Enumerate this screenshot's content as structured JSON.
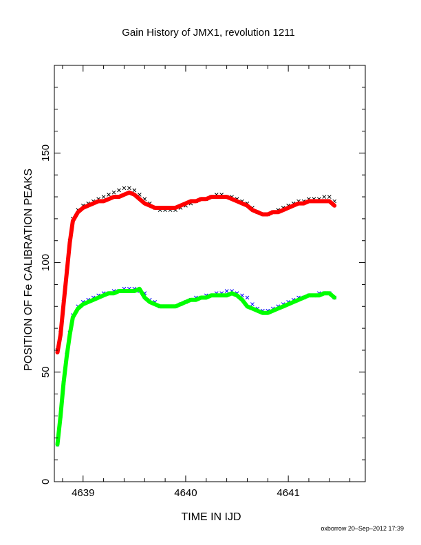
{
  "chart_data": {
    "type": "scatter",
    "title": "Gain History of JMX1, revolution 1211",
    "xlabel": "TIME IN IJD",
    "ylabel": "POSITION OF Fe CALIBRATION PEAKS",
    "xlim": [
      4638.72,
      4641.75
    ],
    "ylim": [
      0,
      190
    ],
    "xticks": [
      4639,
      4640,
      4641
    ],
    "xtick_labels": [
      "4639",
      "4640",
      "4641"
    ],
    "yticks": [
      0,
      50,
      100,
      150
    ],
    "ytick_labels": [
      "0",
      "50",
      "100",
      "150"
    ],
    "grid": false,
    "footer": "oxborrow 20–Sep–2012 17:39",
    "colors": {
      "upper_points": "#000000",
      "upper_fit": "#ff0000",
      "lower_points": "#0000ff",
      "lower_fit": "#00ff00"
    },
    "series": [
      {
        "marker": "x",
        "color": "#000000",
        "x": [
          4638.75,
          4638.78,
          4638.81,
          4638.84,
          4638.87,
          4638.9,
          4638.95,
          4639.0,
          4639.05,
          4639.1,
          4639.15,
          4639.2,
          4639.25,
          4639.3,
          4639.35,
          4639.4,
          4639.45,
          4639.5,
          4639.55,
          4639.6,
          4639.65,
          4639.7,
          4639.75,
          4639.8,
          4639.85,
          4639.9,
          4639.95,
          4640.0,
          4640.05,
          4640.1,
          4640.15,
          4640.2,
          4640.25,
          4640.3,
          4640.35,
          4640.4,
          4640.45,
          4640.5,
          4640.55,
          4640.6,
          4640.65,
          4640.7,
          4640.75,
          4640.8,
          4640.85,
          4640.9,
          4640.95,
          4641.0,
          4641.05,
          4641.1,
          4641.15,
          4641.2,
          4641.25,
          4641.3,
          4641.35,
          4641.4,
          4641.45
        ],
        "y": [
          60,
          68,
          82,
          96,
          110,
          120,
          124,
          126,
          127,
          128,
          129,
          130,
          131,
          132,
          133,
          134,
          134,
          133,
          131,
          129,
          127,
          125,
          124,
          124,
          124,
          124,
          125,
          126,
          127,
          128,
          129,
          129,
          130,
          131,
          131,
          130,
          130,
          129,
          128,
          127,
          125,
          123,
          122,
          122,
          123,
          124,
          125,
          126,
          127,
          128,
          128,
          129,
          129,
          129,
          130,
          130,
          128
        ]
      },
      {
        "marker": "line",
        "color": "#ff0000",
        "x": [
          4638.75,
          4638.78,
          4638.81,
          4638.84,
          4638.87,
          4638.9,
          4638.95,
          4639.0,
          4639.05,
          4639.1,
          4639.15,
          4639.2,
          4639.25,
          4639.3,
          4639.35,
          4639.4,
          4639.45,
          4639.5,
          4639.55,
          4639.6,
          4639.65,
          4639.7,
          4639.75,
          4639.8,
          4639.85,
          4639.9,
          4639.95,
          4640.0,
          4640.05,
          4640.1,
          4640.15,
          4640.2,
          4640.25,
          4640.3,
          4640.35,
          4640.4,
          4640.45,
          4640.5,
          4640.55,
          4640.6,
          4640.65,
          4640.7,
          4640.75,
          4640.8,
          4640.85,
          4640.9,
          4640.95,
          4641.0,
          4641.05,
          4641.1,
          4641.15,
          4641.2,
          4641.25,
          4641.3,
          4641.35,
          4641.4,
          4641.45
        ],
        "y": [
          59,
          67,
          81,
          95,
          109,
          119,
          123,
          125,
          126,
          127,
          128,
          128,
          129,
          130,
          130,
          131,
          132,
          131,
          129,
          127,
          126,
          125,
          125,
          125,
          125,
          125,
          126,
          127,
          128,
          128,
          129,
          129,
          130,
          130,
          130,
          130,
          129,
          128,
          127,
          126,
          124,
          123,
          122,
          122,
          123,
          123,
          124,
          125,
          126,
          127,
          127,
          128,
          128,
          128,
          128,
          128,
          126
        ]
      },
      {
        "marker": "x",
        "color": "#0000ff",
        "x": [
          4638.75,
          4638.78,
          4638.81,
          4638.84,
          4638.87,
          4638.9,
          4638.95,
          4639.0,
          4639.05,
          4639.1,
          4639.15,
          4639.2,
          4639.25,
          4639.3,
          4639.35,
          4639.4,
          4639.45,
          4639.5,
          4639.55,
          4639.6,
          4639.65,
          4639.7,
          4639.75,
          4639.8,
          4639.85,
          4639.9,
          4639.95,
          4640.0,
          4640.05,
          4640.1,
          4640.15,
          4640.2,
          4640.25,
          4640.3,
          4640.35,
          4640.4,
          4640.45,
          4640.5,
          4640.55,
          4640.6,
          4640.65,
          4640.7,
          4640.75,
          4640.8,
          4640.85,
          4640.9,
          4640.95,
          4641.0,
          4641.05,
          4641.1,
          4641.15,
          4641.2,
          4641.25,
          4641.3,
          4641.35,
          4641.4,
          4641.45
        ],
        "y": [
          17,
          30,
          45,
          58,
          68,
          76,
          80,
          82,
          83,
          84,
          85,
          86,
          86,
          87,
          87,
          88,
          88,
          88,
          87,
          86,
          83,
          82,
          80,
          80,
          80,
          80,
          81,
          82,
          83,
          84,
          84,
          85,
          85,
          86,
          86,
          87,
          87,
          86,
          85,
          84,
          81,
          79,
          78,
          78,
          79,
          80,
          81,
          82,
          83,
          84,
          84,
          85,
          85,
          86,
          86,
          86,
          84
        ]
      },
      {
        "marker": "line",
        "color": "#00ff00",
        "x": [
          4638.75,
          4638.78,
          4638.81,
          4638.84,
          4638.87,
          4638.9,
          4638.95,
          4639.0,
          4639.05,
          4639.1,
          4639.15,
          4639.2,
          4639.25,
          4639.3,
          4639.35,
          4639.4,
          4639.45,
          4639.5,
          4639.55,
          4639.6,
          4639.65,
          4639.7,
          4639.75,
          4639.8,
          4639.85,
          4639.9,
          4639.95,
          4640.0,
          4640.05,
          4640.1,
          4640.15,
          4640.2,
          4640.25,
          4640.3,
          4640.35,
          4640.4,
          4640.45,
          4640.5,
          4640.55,
          4640.6,
          4640.65,
          4640.7,
          4640.75,
          4640.8,
          4640.85,
          4640.9,
          4640.95,
          4641.0,
          4641.05,
          4641.1,
          4641.15,
          4641.2,
          4641.25,
          4641.3,
          4641.35,
          4641.4,
          4641.45
        ],
        "y": [
          17,
          30,
          45,
          57,
          67,
          75,
          79,
          81,
          82,
          83,
          84,
          85,
          86,
          86,
          87,
          87,
          87,
          87,
          88,
          84,
          82,
          81,
          80,
          80,
          80,
          80,
          81,
          82,
          83,
          83,
          84,
          84,
          85,
          85,
          85,
          85,
          86,
          85,
          83,
          80,
          79,
          78,
          77,
          77,
          78,
          79,
          80,
          81,
          82,
          83,
          84,
          85,
          85,
          85,
          86,
          86,
          84
        ]
      }
    ]
  }
}
